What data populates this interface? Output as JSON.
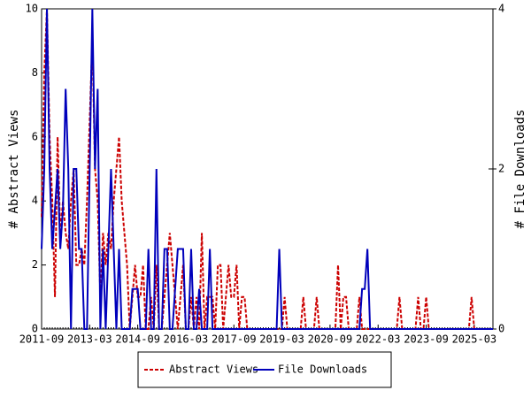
{
  "chart_data": {
    "type": "line",
    "ylabel": "# Abstract Views",
    "y2label": "# File Downloads",
    "xlim": [
      "2011-09",
      "2025-10"
    ],
    "xticks": [
      "2011-09",
      "2013-03",
      "2014-09",
      "2016-03",
      "2017-09",
      "2019-03",
      "2020-09",
      "2022-03",
      "2023-09",
      "2025-03"
    ],
    "ylim": [
      0,
      10
    ],
    "yticks": [
      0,
      2,
      4,
      6,
      8,
      10
    ],
    "y2lim": [
      0,
      4
    ],
    "y2ticks": [
      0,
      2,
      4
    ],
    "legend": "bottom",
    "x": [
      "2011-09",
      "2011-10",
      "2011-11",
      "2011-12",
      "2012-01",
      "2012-02",
      "2012-03",
      "2012-04",
      "2012-05",
      "2012-06",
      "2012-07",
      "2012-08",
      "2012-09",
      "2012-10",
      "2012-11",
      "2012-12",
      "2013-01",
      "2013-02",
      "2013-03",
      "2013-04",
      "2013-05",
      "2013-06",
      "2013-07",
      "2013-08",
      "2013-09",
      "2013-10",
      "2013-11",
      "2013-12",
      "2014-01",
      "2014-02",
      "2014-03",
      "2014-04",
      "2014-05",
      "2014-06",
      "2014-07",
      "2014-08",
      "2014-09",
      "2014-10",
      "2014-11",
      "2014-12",
      "2015-01",
      "2015-02",
      "2015-03",
      "2015-04",
      "2015-05",
      "2015-06",
      "2015-07",
      "2015-08",
      "2015-09",
      "2015-10",
      "2015-11",
      "2015-12",
      "2016-01",
      "2016-02",
      "2016-03",
      "2016-04",
      "2016-05",
      "2016-06",
      "2016-07",
      "2016-08",
      "2016-09",
      "2016-10",
      "2016-11",
      "2016-12",
      "2017-01",
      "2017-02",
      "2017-03",
      "2017-04",
      "2017-05",
      "2017-06",
      "2017-07",
      "2017-08",
      "2017-09",
      "2017-10",
      "2017-11",
      "2017-12",
      "2018-01",
      "2018-02",
      "2018-03",
      "2018-04",
      "2018-05",
      "2018-06",
      "2018-07",
      "2018-08",
      "2018-09",
      "2018-10",
      "2018-11",
      "2018-12",
      "2019-01",
      "2019-02",
      "2019-03",
      "2019-04",
      "2019-05",
      "2019-06",
      "2019-07",
      "2019-08",
      "2019-09",
      "2019-10",
      "2019-11",
      "2019-12",
      "2020-01",
      "2020-02",
      "2020-03",
      "2020-04",
      "2020-05",
      "2020-06",
      "2020-07",
      "2020-08",
      "2020-09",
      "2020-10",
      "2020-11",
      "2020-12",
      "2021-01",
      "2021-02",
      "2021-03",
      "2021-04",
      "2021-05",
      "2021-06",
      "2021-07",
      "2021-08",
      "2021-09",
      "2021-10",
      "2021-11",
      "2021-12",
      "2022-01",
      "2022-02",
      "2022-03",
      "2022-04",
      "2022-05",
      "2022-06",
      "2022-07",
      "2022-08",
      "2022-09",
      "2022-10",
      "2022-11",
      "2022-12",
      "2023-01",
      "2023-02",
      "2023-03",
      "2023-04",
      "2023-05",
      "2023-06",
      "2023-07",
      "2023-08",
      "2023-09",
      "2023-10",
      "2023-11",
      "2023-12",
      "2024-01",
      "2024-02",
      "2024-03",
      "2024-04",
      "2024-05",
      "2024-06",
      "2024-07",
      "2024-08",
      "2024-09",
      "2024-10",
      "2024-11",
      "2024-12",
      "2025-01",
      "2025-02",
      "2025-03",
      "2025-04",
      "2025-05",
      "2025-06",
      "2025-07",
      "2025-08",
      "2025-09",
      "2025-10"
    ],
    "series": [
      {
        "name": "Abstract Views",
        "color": "#cc0000",
        "dash": true,
        "values": [
          3.5,
          8,
          10,
          6,
          4,
          1,
          6,
          3,
          4,
          3,
          2.5,
          4,
          5,
          2,
          2,
          2.5,
          2,
          4,
          6.5,
          9,
          5,
          4,
          1,
          3,
          2,
          3,
          2.5,
          4,
          5,
          6,
          4,
          3,
          2,
          0,
          1,
          2,
          1,
          1,
          2,
          0,
          0,
          1,
          0,
          2,
          0,
          0,
          1,
          2,
          3,
          2,
          1,
          0,
          1,
          2,
          0,
          0,
          1,
          0,
          1,
          0,
          3,
          0,
          1,
          1,
          1,
          0,
          2,
          2,
          0,
          1,
          2,
          1,
          1,
          2,
          0,
          1,
          1,
          0,
          0,
          0,
          0,
          0,
          0,
          0,
          0,
          0,
          0,
          0,
          0,
          0,
          0,
          1,
          0,
          0,
          0,
          0,
          0,
          0,
          1,
          0,
          0,
          0,
          0,
          1,
          0,
          0,
          0,
          0,
          0,
          0,
          0,
          2,
          0,
          1,
          1,
          0,
          0,
          0,
          0,
          1,
          0,
          0,
          0,
          0,
          0,
          0,
          0,
          0,
          0,
          0,
          0,
          0,
          0,
          0,
          1,
          0,
          0,
          0,
          0,
          0,
          0,
          1,
          0,
          0,
          1,
          0,
          0,
          0,
          0,
          0,
          0,
          0,
          0,
          0,
          0,
          0,
          0,
          0,
          0,
          0,
          0,
          1,
          0,
          0,
          0,
          0,
          0,
          0,
          0,
          0
        ]
      },
      {
        "name": "File Downloads",
        "color": "#0000bb",
        "axis": "y2",
        "values": [
          1,
          2,
          4,
          2,
          1,
          1.5,
          2,
          1,
          1.5,
          3,
          2,
          0,
          2,
          2,
          1,
          1,
          0,
          0,
          2,
          4,
          2,
          3,
          0,
          1,
          0,
          1,
          2,
          1,
          0,
          1,
          0,
          0,
          0,
          0,
          0.5,
          0.5,
          0.5,
          0,
          0,
          0,
          1,
          0,
          0,
          2,
          0,
          0,
          1,
          1,
          0,
          0,
          0.5,
          1,
          1,
          1,
          0,
          0,
          1,
          0,
          0,
          0.5,
          0,
          0,
          0,
          1,
          0,
          0,
          0,
          0,
          0,
          0,
          0,
          0,
          0,
          0,
          0,
          0,
          0,
          0,
          0,
          0,
          0,
          0,
          0,
          0,
          0,
          0,
          0,
          0,
          0,
          1,
          0,
          0,
          0,
          0,
          0,
          0,
          0,
          0,
          0,
          0,
          0,
          0,
          0,
          0,
          0,
          0,
          0,
          0,
          0,
          0,
          0,
          0,
          0,
          0,
          0,
          0,
          0,
          0,
          0,
          0,
          0.5,
          0.5,
          1,
          0,
          0,
          0,
          0,
          0,
          0,
          0,
          0,
          0,
          0,
          0,
          0,
          0,
          0,
          0,
          0,
          0,
          0,
          0,
          0,
          0,
          0,
          0,
          0,
          0,
          0,
          0,
          0,
          0,
          0,
          0,
          0,
          0,
          0,
          0,
          0,
          0,
          0,
          0,
          0,
          0,
          0,
          0,
          0,
          0,
          0,
          0
        ]
      }
    ]
  }
}
